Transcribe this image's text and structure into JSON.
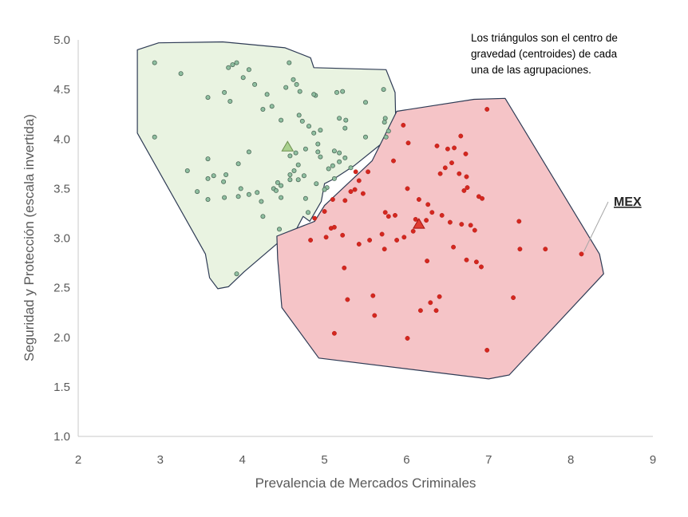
{
  "chart_data": {
    "type": "scatter",
    "title": "",
    "xlabel": "Prevalencia de Mercados Criminales",
    "ylabel": "Seguridad y Protección (escala invertida)",
    "xlim": [
      2,
      9
    ],
    "ylim": [
      1.0,
      5.0
    ],
    "x_ticks": [
      "2",
      "3",
      "4",
      "5",
      "6",
      "7",
      "8",
      "9"
    ],
    "y_ticks": [
      "1.0",
      "1.5",
      "2.0",
      "2.5",
      "3.0",
      "3.5",
      "4.0",
      "4.5",
      "5.0"
    ],
    "grid": false,
    "annotation": {
      "lines": [
        "Los triángulos son el centro de",
        "gravedad (centroides) de cada",
        "una de las  agrupaciones."
      ]
    },
    "highlight": {
      "label": "MEX",
      "x": 8.13,
      "y": 2.84
    },
    "colors": {
      "green_point": "#8fbfa0",
      "green_fill": "#e9f3e1",
      "red_point": "#d4271f",
      "red_fill": "#f5c4c7",
      "hull_stroke": "#2e3b55",
      "axis": "#c9c9c9"
    },
    "series": [
      {
        "color": "#8fbfa0",
        "centroid": [
          4.55,
          3.92
        ],
        "hull": [
          [
            2.72,
            4.9
          ],
          [
            2.98,
            4.97
          ],
          [
            3.76,
            4.98
          ],
          [
            4.52,
            4.92
          ],
          [
            4.83,
            4.82
          ],
          [
            4.87,
            4.72
          ],
          [
            5.75,
            4.7
          ],
          [
            5.86,
            4.47
          ],
          [
            5.87,
            4.09
          ],
          [
            5.78,
            4.01
          ],
          [
            5.36,
            3.73
          ],
          [
            5.12,
            3.6
          ],
          [
            5.0,
            3.55
          ],
          [
            4.96,
            3.37
          ],
          [
            4.82,
            3.17
          ],
          [
            4.74,
            3.22
          ],
          [
            4.6,
            3.0
          ],
          [
            4.43,
            2.95
          ],
          [
            4.02,
            2.66
          ],
          [
            3.83,
            2.51
          ],
          [
            3.7,
            2.49
          ],
          [
            3.6,
            2.6
          ],
          [
            3.55,
            2.84
          ],
          [
            2.72,
            4.06
          ],
          [
            2.72,
            4.9
          ]
        ],
        "points": [
          [
            2.93,
            4.77
          ],
          [
            3.25,
            4.66
          ],
          [
            2.93,
            4.02
          ],
          [
            3.58,
            4.42
          ],
          [
            3.78,
            4.47
          ],
          [
            3.85,
            4.38
          ],
          [
            3.83,
            4.72
          ],
          [
            3.93,
            4.77
          ],
          [
            3.88,
            4.75
          ],
          [
            4.01,
            4.62
          ],
          [
            4.08,
            4.7
          ],
          [
            4.15,
            4.55
          ],
          [
            4.3,
            4.45
          ],
          [
            4.36,
            4.33
          ],
          [
            4.25,
            4.3
          ],
          [
            4.57,
            4.77
          ],
          [
            4.62,
            4.6
          ],
          [
            4.66,
            4.55
          ],
          [
            4.7,
            4.48
          ],
          [
            4.53,
            4.52
          ],
          [
            4.89,
            4.44
          ],
          [
            4.87,
            4.45
          ],
          [
            5.15,
            4.47
          ],
          [
            5.22,
            4.48
          ],
          [
            5.72,
            4.5
          ],
          [
            5.5,
            4.37
          ],
          [
            4.47,
            4.19
          ],
          [
            4.69,
            4.24
          ],
          [
            4.73,
            4.18
          ],
          [
            4.81,
            4.13
          ],
          [
            4.95,
            4.09
          ],
          [
            5.18,
            4.21
          ],
          [
            5.26,
            4.19
          ],
          [
            5.74,
            4.21
          ],
          [
            5.73,
            4.17
          ],
          [
            5.78,
            4.08
          ],
          [
            5.75,
            4.02
          ],
          [
            5.5,
            4.02
          ],
          [
            5.25,
            4.11
          ],
          [
            4.87,
            4.06
          ],
          [
            4.92,
            3.95
          ],
          [
            4.77,
            3.9
          ],
          [
            4.65,
            3.86
          ],
          [
            4.58,
            3.83
          ],
          [
            4.68,
            3.74
          ],
          [
            4.63,
            3.68
          ],
          [
            4.58,
            3.64
          ],
          [
            4.58,
            3.59
          ],
          [
            4.68,
            3.59
          ],
          [
            4.43,
            3.56
          ],
          [
            4.47,
            3.53
          ],
          [
            4.38,
            3.5
          ],
          [
            4.41,
            3.48
          ],
          [
            4.75,
            3.63
          ],
          [
            4.92,
            3.87
          ],
          [
            4.95,
            3.82
          ],
          [
            5.12,
            3.88
          ],
          [
            5.18,
            3.86
          ],
          [
            5.25,
            3.81
          ],
          [
            5.18,
            3.77
          ],
          [
            5.1,
            3.73
          ],
          [
            5.05,
            3.7
          ],
          [
            5.32,
            3.71
          ],
          [
            5.12,
            3.6
          ],
          [
            5.03,
            3.51
          ],
          [
            5.0,
            3.49
          ],
          [
            4.77,
            3.4
          ],
          [
            4.47,
            3.41
          ],
          [
            4.18,
            3.46
          ],
          [
            4.08,
            3.44
          ],
          [
            3.95,
            3.42
          ],
          [
            3.78,
            3.41
          ],
          [
            3.58,
            3.39
          ],
          [
            3.45,
            3.47
          ],
          [
            3.58,
            3.6
          ],
          [
            3.65,
            3.63
          ],
          [
            3.77,
            3.57
          ],
          [
            3.8,
            3.64
          ],
          [
            3.95,
            3.75
          ],
          [
            4.08,
            3.87
          ],
          [
            3.58,
            3.8
          ],
          [
            3.33,
            3.68
          ],
          [
            3.98,
            3.5
          ],
          [
            4.23,
            3.37
          ],
          [
            4.25,
            3.22
          ],
          [
            4.45,
            3.09
          ],
          [
            4.8,
            3.26
          ],
          [
            4.9,
            3.55
          ],
          [
            3.93,
            2.64
          ]
        ]
      },
      {
        "color": "#d4271f",
        "centroid": [
          6.15,
          3.14
        ],
        "hull": [
          [
            4.42,
            3.02
          ],
          [
            4.88,
            3.17
          ],
          [
            5.0,
            3.33
          ],
          [
            5.58,
            3.78
          ],
          [
            5.88,
            4.28
          ],
          [
            6.82,
            4.4
          ],
          [
            7.2,
            4.41
          ],
          [
            8.35,
            2.84
          ],
          [
            8.4,
            2.64
          ],
          [
            7.25,
            1.62
          ],
          [
            7.0,
            1.58
          ],
          [
            4.93,
            1.79
          ],
          [
            4.48,
            2.3
          ],
          [
            4.43,
            2.79
          ],
          [
            4.42,
            3.02
          ]
        ],
        "points": [
          [
            5.96,
            4.14
          ],
          [
            6.98,
            4.3
          ],
          [
            5.84,
            3.78
          ],
          [
            6.02,
            3.96
          ],
          [
            6.37,
            3.93
          ],
          [
            6.5,
            3.9
          ],
          [
            6.58,
            3.91
          ],
          [
            6.66,
            4.03
          ],
          [
            6.72,
            3.85
          ],
          [
            6.55,
            3.76
          ],
          [
            6.47,
            3.71
          ],
          [
            6.41,
            3.65
          ],
          [
            6.64,
            3.65
          ],
          [
            6.73,
            3.62
          ],
          [
            6.74,
            3.51
          ],
          [
            6.7,
            3.48
          ],
          [
            6.88,
            3.42
          ],
          [
            6.92,
            3.4
          ],
          [
            5.38,
            3.67
          ],
          [
            5.53,
            3.67
          ],
          [
            5.42,
            3.58
          ],
          [
            5.37,
            3.49
          ],
          [
            5.32,
            3.47
          ],
          [
            5.47,
            3.45
          ],
          [
            5.25,
            3.38
          ],
          [
            5.1,
            3.39
          ],
          [
            5.0,
            3.27
          ],
          [
            5.74,
            3.26
          ],
          [
            5.86,
            3.23
          ],
          [
            5.78,
            3.22
          ],
          [
            6.01,
            3.5
          ],
          [
            6.15,
            3.39
          ],
          [
            6.26,
            3.34
          ],
          [
            6.31,
            3.26
          ],
          [
            6.43,
            3.23
          ],
          [
            6.53,
            3.16
          ],
          [
            6.24,
            3.18
          ],
          [
            6.11,
            3.19
          ],
          [
            6.08,
            3.07
          ],
          [
            5.97,
            3.01
          ],
          [
            5.88,
            2.98
          ],
          [
            5.7,
            3.04
          ],
          [
            5.73,
            2.89
          ],
          [
            5.55,
            2.98
          ],
          [
            5.42,
            2.94
          ],
          [
            4.88,
            3.2
          ],
          [
            5.08,
            3.1
          ],
          [
            5.12,
            3.11
          ],
          [
            5.22,
            3.03
          ],
          [
            5.02,
            3.01
          ],
          [
            4.83,
            2.98
          ],
          [
            6.67,
            3.14
          ],
          [
            6.78,
            3.13
          ],
          [
            6.83,
            3.08
          ],
          [
            7.37,
            3.17
          ],
          [
            7.38,
            2.89
          ],
          [
            7.69,
            2.89
          ],
          [
            8.13,
            2.84
          ],
          [
            6.57,
            2.91
          ],
          [
            6.73,
            2.78
          ],
          [
            6.85,
            2.76
          ],
          [
            6.91,
            2.71
          ],
          [
            6.25,
            2.77
          ],
          [
            5.24,
            2.7
          ],
          [
            6.4,
            2.41
          ],
          [
            6.29,
            2.35
          ],
          [
            6.17,
            2.27
          ],
          [
            6.36,
            2.27
          ],
          [
            5.59,
            2.42
          ],
          [
            5.61,
            2.22
          ],
          [
            5.28,
            2.38
          ],
          [
            5.12,
            2.04
          ],
          [
            6.01,
            1.99
          ],
          [
            6.98,
            1.87
          ],
          [
            7.3,
            2.4
          ]
        ]
      }
    ]
  }
}
